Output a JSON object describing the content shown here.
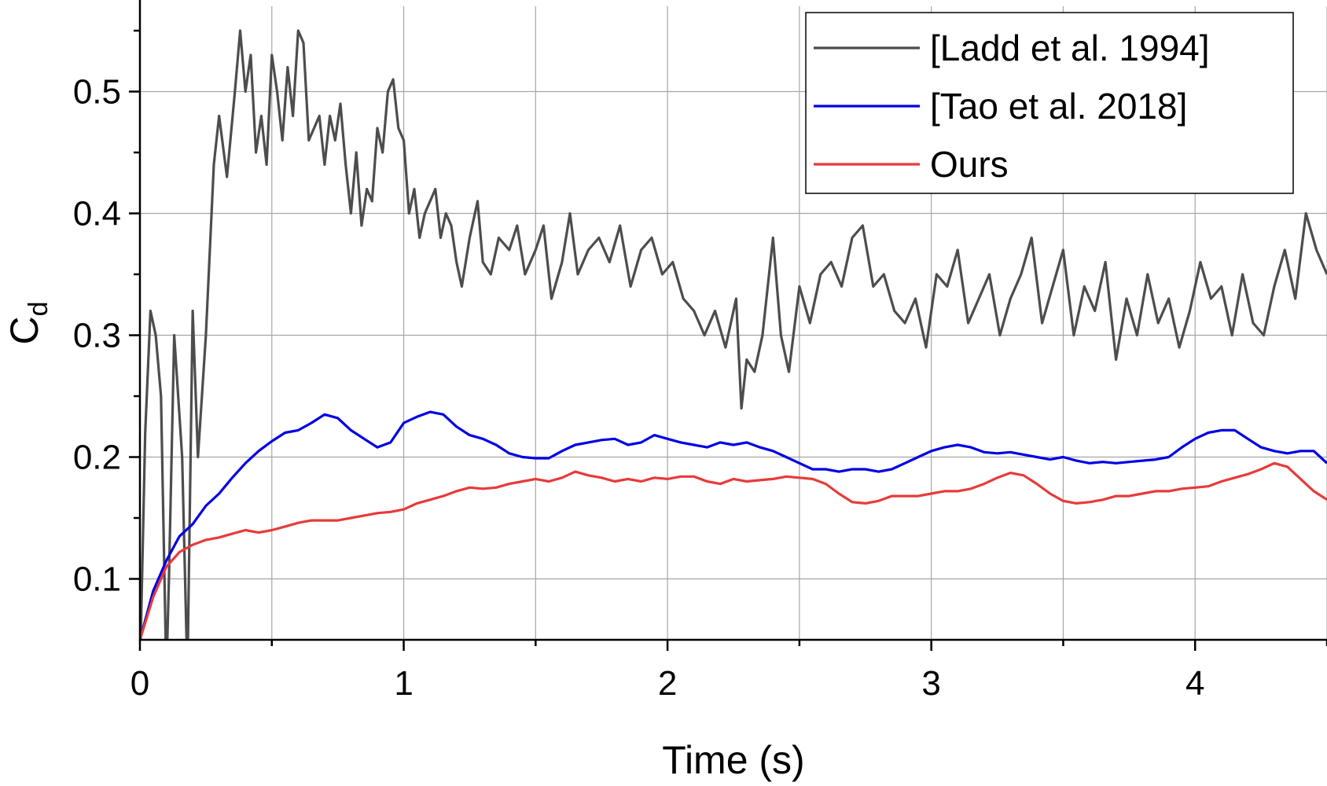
{
  "chart_data": {
    "type": "line",
    "title": "",
    "xlabel": "Time (s)",
    "ylabel_main": "C",
    "ylabel_sub": "d",
    "xlim": [
      0,
      4.5
    ],
    "ylim": [
      0.05,
      0.57
    ],
    "x_ticks": [
      0,
      1,
      2,
      3,
      4
    ],
    "x_tick_labels": [
      "0",
      "1",
      "2",
      "3",
      "4"
    ],
    "x_minor_ticks": [
      0.5,
      1.5,
      2.5,
      3.5,
      4.5
    ],
    "y_ticks": [
      0.1,
      0.2,
      0.3,
      0.4,
      0.5
    ],
    "y_tick_labels": [
      "0.1",
      "0.2",
      "0.3",
      "0.4",
      "0.5"
    ],
    "y_minor_ticks": [
      0.15,
      0.25,
      0.35,
      0.45,
      0.55
    ],
    "grid": true,
    "legend_position": "top-right",
    "series": [
      {
        "name": "[Ladd et al. 1994]",
        "color": "#4d4d4d",
        "x": [
          0,
          0.02,
          0.04,
          0.06,
          0.08,
          0.1,
          0.11,
          0.13,
          0.16,
          0.18,
          0.2,
          0.22,
          0.25,
          0.28,
          0.3,
          0.33,
          0.36,
          0.38,
          0.4,
          0.42,
          0.44,
          0.46,
          0.48,
          0.5,
          0.52,
          0.54,
          0.56,
          0.58,
          0.6,
          0.62,
          0.64,
          0.66,
          0.68,
          0.7,
          0.72,
          0.74,
          0.76,
          0.78,
          0.8,
          0.82,
          0.84,
          0.86,
          0.88,
          0.9,
          0.92,
          0.94,
          0.96,
          0.98,
          1.0,
          1.02,
          1.04,
          1.06,
          1.08,
          1.1,
          1.12,
          1.14,
          1.16,
          1.18,
          1.2,
          1.22,
          1.25,
          1.28,
          1.3,
          1.33,
          1.36,
          1.4,
          1.43,
          1.46,
          1.5,
          1.53,
          1.56,
          1.6,
          1.63,
          1.66,
          1.7,
          1.74,
          1.78,
          1.82,
          1.86,
          1.9,
          1.94,
          1.98,
          2.02,
          2.06,
          2.1,
          2.14,
          2.18,
          2.22,
          2.26,
          2.28,
          2.3,
          2.33,
          2.36,
          2.4,
          2.43,
          2.46,
          2.5,
          2.54,
          2.58,
          2.62,
          2.66,
          2.7,
          2.74,
          2.78,
          2.82,
          2.86,
          2.9,
          2.94,
          2.98,
          3.02,
          3.06,
          3.1,
          3.14,
          3.18,
          3.22,
          3.26,
          3.3,
          3.34,
          3.38,
          3.42,
          3.46,
          3.5,
          3.54,
          3.58,
          3.62,
          3.66,
          3.7,
          3.74,
          3.78,
          3.82,
          3.86,
          3.9,
          3.94,
          3.98,
          4.02,
          4.06,
          4.1,
          4.14,
          4.18,
          4.22,
          4.26,
          4.3,
          4.34,
          4.38,
          4.42,
          4.46,
          4.5
        ],
        "y": [
          0.02,
          0.22,
          0.32,
          0.3,
          0.25,
          0.02,
          0.1,
          0.3,
          0.2,
          0.02,
          0.32,
          0.2,
          0.3,
          0.44,
          0.48,
          0.43,
          0.5,
          0.55,
          0.5,
          0.53,
          0.45,
          0.48,
          0.44,
          0.53,
          0.5,
          0.46,
          0.52,
          0.48,
          0.55,
          0.54,
          0.46,
          0.47,
          0.48,
          0.44,
          0.48,
          0.46,
          0.49,
          0.44,
          0.4,
          0.45,
          0.39,
          0.42,
          0.41,
          0.47,
          0.45,
          0.5,
          0.51,
          0.47,
          0.46,
          0.4,
          0.42,
          0.38,
          0.4,
          0.41,
          0.42,
          0.38,
          0.4,
          0.39,
          0.36,
          0.34,
          0.38,
          0.41,
          0.36,
          0.35,
          0.38,
          0.37,
          0.39,
          0.35,
          0.37,
          0.39,
          0.33,
          0.36,
          0.4,
          0.35,
          0.37,
          0.38,
          0.36,
          0.39,
          0.34,
          0.37,
          0.38,
          0.35,
          0.36,
          0.33,
          0.32,
          0.3,
          0.32,
          0.29,
          0.33,
          0.24,
          0.28,
          0.27,
          0.3,
          0.38,
          0.3,
          0.27,
          0.34,
          0.31,
          0.35,
          0.36,
          0.34,
          0.38,
          0.39,
          0.34,
          0.35,
          0.32,
          0.31,
          0.33,
          0.29,
          0.35,
          0.34,
          0.37,
          0.31,
          0.33,
          0.35,
          0.3,
          0.33,
          0.35,
          0.38,
          0.31,
          0.34,
          0.37,
          0.3,
          0.34,
          0.32,
          0.36,
          0.28,
          0.33,
          0.3,
          0.35,
          0.31,
          0.33,
          0.29,
          0.32,
          0.36,
          0.33,
          0.34,
          0.3,
          0.35,
          0.31,
          0.3,
          0.34,
          0.37,
          0.33,
          0.4,
          0.37,
          0.35
        ],
        "note_clipped": false
      },
      {
        "name": "[Tao et al. 2018]",
        "color": "#0000e6",
        "x": [
          0,
          0.05,
          0.1,
          0.15,
          0.2,
          0.25,
          0.3,
          0.35,
          0.4,
          0.45,
          0.5,
          0.55,
          0.6,
          0.65,
          0.7,
          0.75,
          0.8,
          0.85,
          0.9,
          0.95,
          1.0,
          1.05,
          1.1,
          1.15,
          1.2,
          1.25,
          1.3,
          1.35,
          1.4,
          1.45,
          1.5,
          1.55,
          1.6,
          1.65,
          1.7,
          1.75,
          1.8,
          1.85,
          1.9,
          1.95,
          2.0,
          2.05,
          2.1,
          2.15,
          2.2,
          2.25,
          2.3,
          2.35,
          2.4,
          2.45,
          2.5,
          2.55,
          2.6,
          2.65,
          2.7,
          2.75,
          2.8,
          2.85,
          2.9,
          2.95,
          3.0,
          3.05,
          3.1,
          3.15,
          3.2,
          3.25,
          3.3,
          3.35,
          3.4,
          3.45,
          3.5,
          3.55,
          3.6,
          3.65,
          3.7,
          3.75,
          3.8,
          3.85,
          3.9,
          3.95,
          4.0,
          4.05,
          4.1,
          4.15,
          4.2,
          4.25,
          4.3,
          4.35,
          4.4,
          4.45,
          4.5
        ],
        "y": [
          0.05,
          0.09,
          0.115,
          0.135,
          0.145,
          0.16,
          0.17,
          0.183,
          0.195,
          0.205,
          0.213,
          0.22,
          0.222,
          0.228,
          0.235,
          0.232,
          0.222,
          0.215,
          0.208,
          0.212,
          0.228,
          0.233,
          0.237,
          0.235,
          0.225,
          0.218,
          0.215,
          0.21,
          0.203,
          0.2,
          0.199,
          0.199,
          0.205,
          0.21,
          0.212,
          0.214,
          0.215,
          0.21,
          0.212,
          0.218,
          0.215,
          0.212,
          0.21,
          0.208,
          0.212,
          0.21,
          0.212,
          0.208,
          0.205,
          0.2,
          0.195,
          0.19,
          0.19,
          0.188,
          0.19,
          0.19,
          0.188,
          0.19,
          0.195,
          0.2,
          0.205,
          0.208,
          0.21,
          0.208,
          0.204,
          0.203,
          0.204,
          0.202,
          0.2,
          0.198,
          0.2,
          0.197,
          0.195,
          0.196,
          0.195,
          0.196,
          0.197,
          0.198,
          0.2,
          0.208,
          0.215,
          0.22,
          0.222,
          0.222,
          0.215,
          0.208,
          0.205,
          0.203,
          0.205,
          0.205,
          0.195
        ]
      },
      {
        "name": "Ours",
        "color": "#e83a3a",
        "x": [
          0,
          0.05,
          0.1,
          0.15,
          0.2,
          0.25,
          0.3,
          0.35,
          0.4,
          0.45,
          0.5,
          0.55,
          0.6,
          0.65,
          0.7,
          0.75,
          0.8,
          0.85,
          0.9,
          0.95,
          1.0,
          1.05,
          1.1,
          1.15,
          1.2,
          1.25,
          1.3,
          1.35,
          1.4,
          1.45,
          1.5,
          1.55,
          1.6,
          1.65,
          1.7,
          1.75,
          1.8,
          1.85,
          1.9,
          1.95,
          2.0,
          2.05,
          2.1,
          2.15,
          2.2,
          2.25,
          2.3,
          2.35,
          2.4,
          2.45,
          2.5,
          2.55,
          2.6,
          2.65,
          2.7,
          2.75,
          2.8,
          2.85,
          2.9,
          2.95,
          3.0,
          3.05,
          3.1,
          3.15,
          3.2,
          3.25,
          3.3,
          3.35,
          3.4,
          3.45,
          3.5,
          3.55,
          3.6,
          3.65,
          3.7,
          3.75,
          3.8,
          3.85,
          3.9,
          3.95,
          4.0,
          4.05,
          4.1,
          4.15,
          4.2,
          4.25,
          4.3,
          4.35,
          4.4,
          4.45,
          4.5
        ],
        "y": [
          0.05,
          0.085,
          0.11,
          0.122,
          0.128,
          0.132,
          0.134,
          0.137,
          0.14,
          0.138,
          0.14,
          0.143,
          0.146,
          0.148,
          0.148,
          0.148,
          0.15,
          0.152,
          0.154,
          0.155,
          0.157,
          0.162,
          0.165,
          0.168,
          0.172,
          0.175,
          0.174,
          0.175,
          0.178,
          0.18,
          0.182,
          0.18,
          0.183,
          0.188,
          0.185,
          0.183,
          0.18,
          0.182,
          0.18,
          0.183,
          0.182,
          0.184,
          0.184,
          0.18,
          0.178,
          0.182,
          0.18,
          0.181,
          0.182,
          0.184,
          0.183,
          0.182,
          0.178,
          0.17,
          0.163,
          0.162,
          0.164,
          0.168,
          0.168,
          0.168,
          0.17,
          0.172,
          0.172,
          0.174,
          0.178,
          0.183,
          0.187,
          0.185,
          0.178,
          0.17,
          0.164,
          0.162,
          0.163,
          0.165,
          0.168,
          0.168,
          0.17,
          0.172,
          0.172,
          0.174,
          0.175,
          0.176,
          0.18,
          0.183,
          0.186,
          0.19,
          0.195,
          0.192,
          0.182,
          0.172,
          0.165
        ]
      }
    ]
  }
}
